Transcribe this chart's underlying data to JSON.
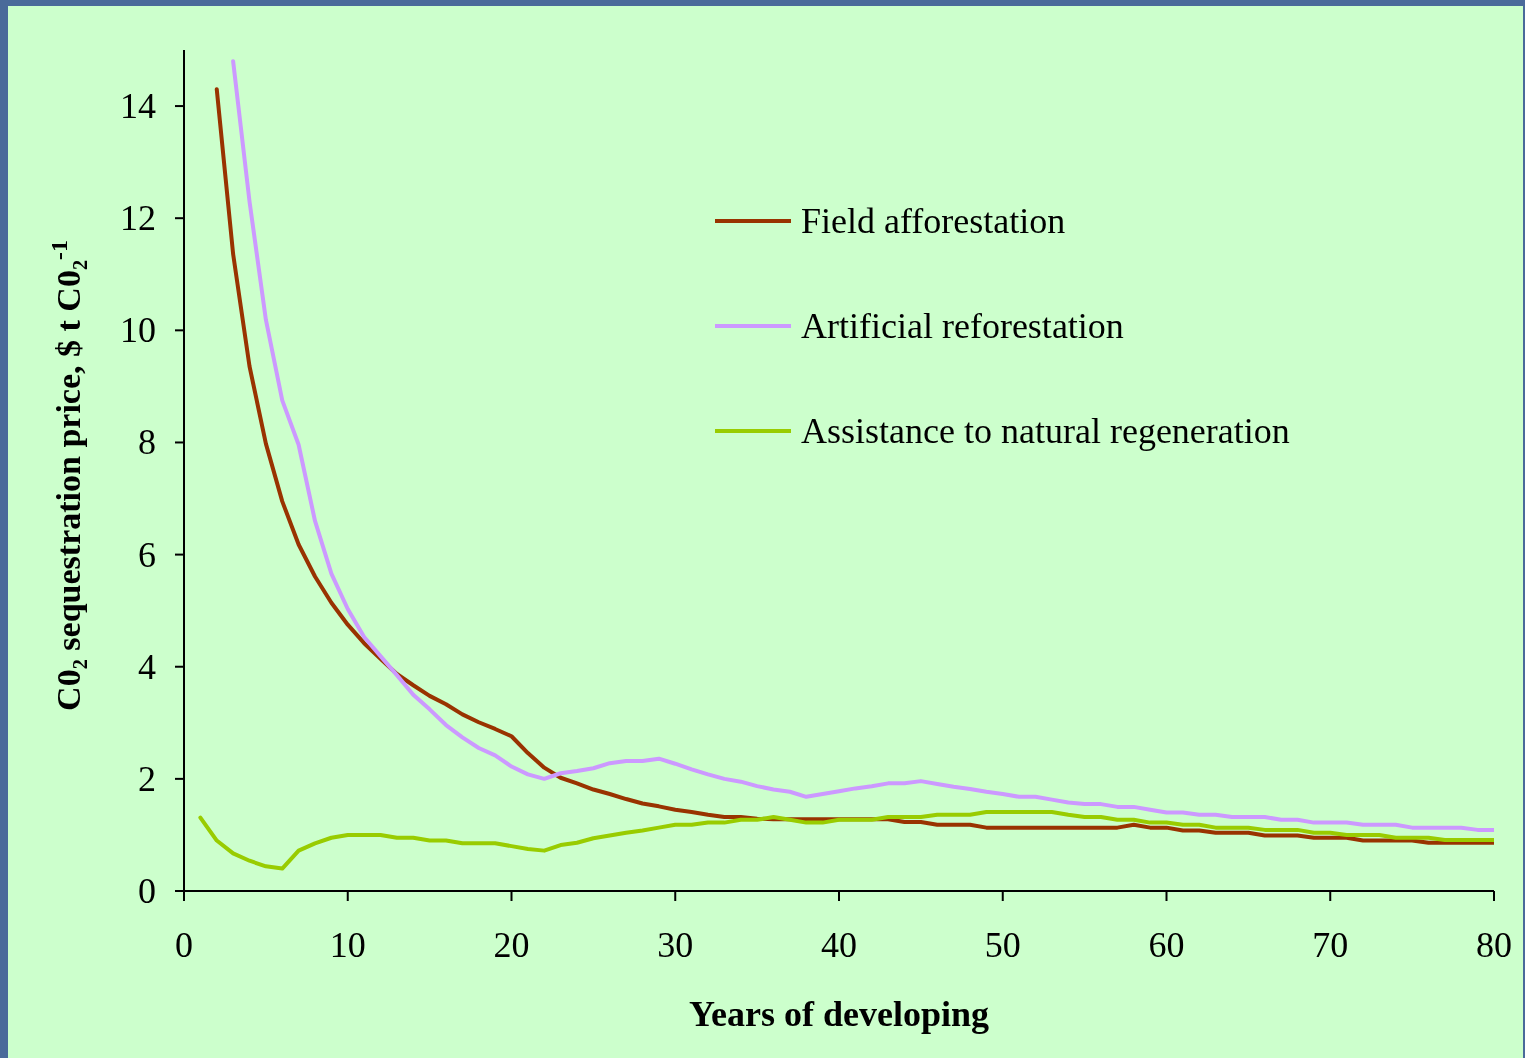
{
  "chart_data": {
    "type": "line",
    "xlabel": "Years of developing",
    "ylabel": "C0₂ sequestration price, $ t C0₂$^{-1}$",
    "x": [
      1,
      2,
      3,
      4,
      5,
      6,
      7,
      8,
      9,
      10,
      11,
      12,
      13,
      14,
      15,
      16,
      17,
      18,
      19,
      20,
      21,
      22,
      23,
      24,
      25,
      26,
      27,
      28,
      29,
      30,
      31,
      32,
      33,
      34,
      35,
      36,
      37,
      38,
      39,
      40,
      41,
      42,
      43,
      44,
      45,
      46,
      47,
      48,
      49,
      50,
      51,
      52,
      53,
      54,
      55,
      56,
      57,
      58,
      59,
      60,
      61,
      62,
      63,
      64,
      65,
      66,
      67,
      68,
      69,
      70,
      71,
      72,
      73,
      74,
      75,
      76,
      77,
      78,
      79,
      80
    ],
    "series": [
      {
        "name": "Field afforestation",
        "color": "#993300",
        "values": [
          null,
          14.3,
          11.36,
          9.36,
          7.98,
          6.95,
          6.18,
          5.61,
          5.14,
          4.75,
          4.42,
          4.14,
          3.87,
          3.67,
          3.48,
          3.33,
          3.15,
          3.01,
          2.89,
          2.76,
          2.46,
          2.2,
          2.02,
          1.92,
          1.81,
          1.73,
          1.64,
          1.56,
          1.51,
          1.45,
          1.41,
          1.36,
          1.32,
          1.32,
          1.29,
          1.28,
          1.28,
          1.28,
          1.28,
          1.28,
          1.28,
          1.28,
          1.28,
          1.23,
          1.23,
          1.18,
          1.18,
          1.18,
          1.13,
          1.13,
          1.13,
          1.13,
          1.13,
          1.13,
          1.13,
          1.13,
          1.13,
          1.18,
          1.13,
          1.13,
          1.08,
          1.08,
          1.04,
          1.04,
          1.04,
          0.99,
          0.99,
          0.99,
          0.95,
          0.95,
          0.95,
          0.9,
          0.9,
          0.9,
          0.9,
          0.86,
          0.86,
          0.86,
          0.86,
          0.86
        ]
      },
      {
        "name": "Artificial reforestation",
        "color": "#cc99ff",
        "values": [
          null,
          null,
          14.8,
          12.3,
          10.19,
          8.75,
          7.96,
          6.6,
          5.66,
          5.03,
          4.53,
          4.19,
          3.85,
          3.5,
          3.24,
          2.96,
          2.74,
          2.55,
          2.42,
          2.22,
          2.08,
          2.0,
          2.1,
          2.14,
          2.19,
          2.28,
          2.32,
          2.32,
          2.36,
          2.27,
          2.17,
          2.08,
          2.0,
          1.95,
          1.87,
          1.81,
          1.77,
          1.68,
          1.73,
          1.78,
          1.83,
          1.87,
          1.92,
          1.92,
          1.96,
          1.91,
          1.86,
          1.82,
          1.77,
          1.73,
          1.68,
          1.68,
          1.63,
          1.58,
          1.55,
          1.55,
          1.5,
          1.5,
          1.45,
          1.4,
          1.4,
          1.36,
          1.36,
          1.32,
          1.32,
          1.32,
          1.27,
          1.27,
          1.22,
          1.22,
          1.22,
          1.18,
          1.18,
          1.18,
          1.13,
          1.13,
          1.13,
          1.13,
          1.09,
          1.09
        ]
      },
      {
        "name": "Assistance to natural regeneration",
        "color": "#99cc00",
        "values": [
          1.31,
          0.9,
          0.67,
          0.54,
          0.44,
          0.4,
          0.72,
          0.85,
          0.95,
          1.0,
          1.0,
          1.0,
          0.95,
          0.95,
          0.9,
          0.9,
          0.85,
          0.85,
          0.85,
          0.8,
          0.75,
          0.72,
          0.82,
          0.86,
          0.94,
          0.99,
          1.04,
          1.08,
          1.13,
          1.18,
          1.18,
          1.22,
          1.22,
          1.27,
          1.27,
          1.32,
          1.27,
          1.22,
          1.22,
          1.27,
          1.27,
          1.27,
          1.32,
          1.32,
          1.32,
          1.36,
          1.36,
          1.36,
          1.41,
          1.41,
          1.41,
          1.41,
          1.41,
          1.36,
          1.32,
          1.32,
          1.27,
          1.27,
          1.22,
          1.22,
          1.18,
          1.18,
          1.13,
          1.13,
          1.13,
          1.09,
          1.09,
          1.09,
          1.04,
          1.04,
          1.0,
          1.0,
          1.0,
          0.95,
          0.95,
          0.95,
          0.91,
          0.91,
          0.91,
          0.91
        ]
      }
    ],
    "xlim": [
      0,
      80
    ],
    "xticks": [
      0,
      10,
      20,
      30,
      40,
      50,
      60,
      70,
      80
    ],
    "ylim": [
      0,
      15
    ],
    "yticks": [
      0,
      2,
      4,
      6,
      8,
      10,
      12,
      14
    ],
    "legend": "top right",
    "grid": false
  }
}
